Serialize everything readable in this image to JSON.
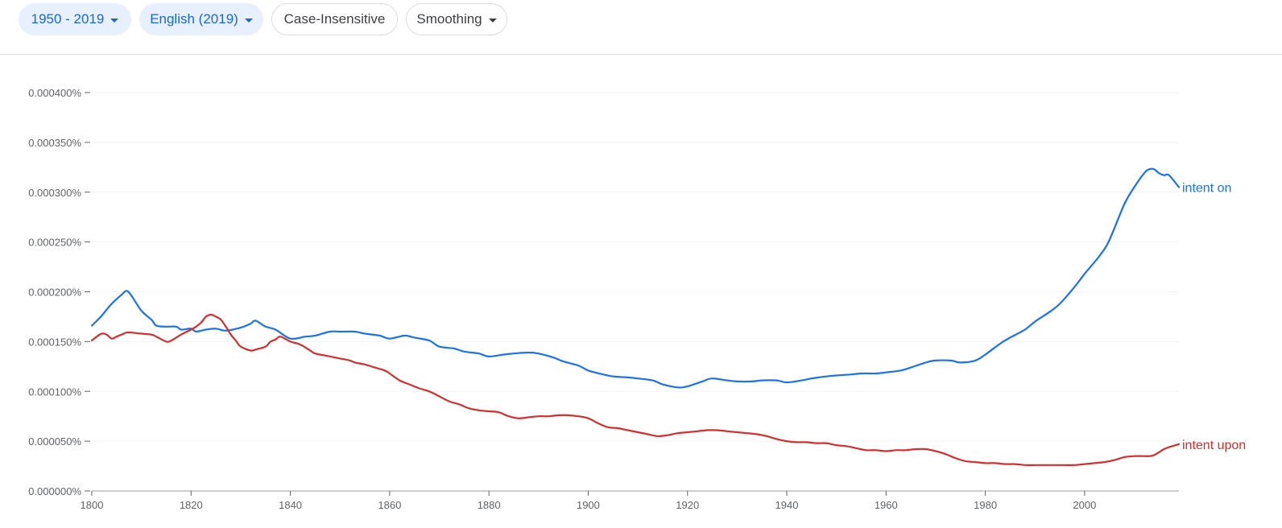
{
  "toolbar": {
    "year_range": "1950 - 2019",
    "corpus": "English (2019)",
    "case": "Case-Insensitive",
    "smoothing": "Smoothing"
  },
  "colors": {
    "intent_on": "#1a73e8",
    "intent_upon": "#d32f2f",
    "chip_active_bg": "#e8f0fe",
    "chip_active_text": "#1967d2"
  },
  "chart_data": {
    "type": "line",
    "title": "",
    "xlabel": "",
    "ylabel": "",
    "xlim": [
      1800,
      2019
    ],
    "ylim": [
      0,
      0.0004
    ],
    "grid": true,
    "legend": "end-of-line labels",
    "x_ticks": [
      "1800",
      "1820",
      "1840",
      "1860",
      "1880",
      "1900",
      "1920",
      "1940",
      "1960",
      "1980",
      "2000"
    ],
    "y_ticks": [
      "0.000000%",
      "0.000050%",
      "0.000100%",
      "0.000150%",
      "0.000200%",
      "0.000250%",
      "0.000300%",
      "0.000350%",
      "0.000400%"
    ],
    "series": [
      {
        "name": "intent on",
        "x": [
          1800,
          1802,
          1804,
          1806,
          1807,
          1808,
          1810,
          1812,
          1813,
          1815,
          1817,
          1818,
          1820,
          1821,
          1823,
          1825,
          1827,
          1830,
          1832,
          1833,
          1835,
          1837,
          1840,
          1843,
          1845,
          1848,
          1850,
          1853,
          1855,
          1858,
          1860,
          1863,
          1865,
          1868,
          1870,
          1873,
          1875,
          1878,
          1880,
          1883,
          1885,
          1888,
          1890,
          1893,
          1895,
          1898,
          1900,
          1903,
          1905,
          1908,
          1910,
          1913,
          1915,
          1918,
          1920,
          1923,
          1925,
          1928,
          1930,
          1933,
          1935,
          1938,
          1940,
          1943,
          1945,
          1948,
          1950,
          1953,
          1955,
          1958,
          1960,
          1963,
          1965,
          1968,
          1970,
          1973,
          1975,
          1978,
          1980,
          1983,
          1985,
          1988,
          1990,
          1993,
          1995,
          1998,
          2000,
          2003,
          2005,
          2008,
          2010,
          2012,
          2013,
          2014,
          2015,
          2016,
          2017,
          2019
        ],
        "values": [
          0.000166,
          0.000176,
          0.000188,
          0.000197,
          0.000201,
          0.000196,
          0.000181,
          0.000172,
          0.000166,
          0.000165,
          0.000165,
          0.000162,
          0.000163,
          0.00016,
          0.000162,
          0.000163,
          0.000161,
          0.000164,
          0.000168,
          0.000171,
          0.000165,
          0.000162,
          0.000153,
          0.000155,
          0.000156,
          0.00016,
          0.00016,
          0.00016,
          0.000158,
          0.000156,
          0.000153,
          0.000156,
          0.000154,
          0.000151,
          0.000145,
          0.000143,
          0.00014,
          0.000138,
          0.000135,
          0.000137,
          0.000138,
          0.000139,
          0.000138,
          0.000134,
          0.00013,
          0.000126,
          0.000121,
          0.000117,
          0.000115,
          0.000114,
          0.000113,
          0.000111,
          0.000107,
          0.000104,
          0.000105,
          0.00011,
          0.000113,
          0.000111,
          0.00011,
          0.00011,
          0.000111,
          0.000111,
          0.000109,
          0.000111,
          0.000113,
          0.000115,
          0.000116,
          0.000117,
          0.000118,
          0.000118,
          0.000119,
          0.000121,
          0.000124,
          0.000129,
          0.000131,
          0.000131,
          0.000129,
          0.000131,
          0.000137,
          0.000148,
          0.000154,
          0.000162,
          0.00017,
          0.00018,
          0.000188,
          0.000205,
          0.000218,
          0.000236,
          0.000252,
          0.000288,
          0.000305,
          0.000319,
          0.000323,
          0.000323,
          0.000319,
          0.000317,
          0.000317,
          0.000305
        ]
      },
      {
        "name": "intent upon",
        "x": [
          1800,
          1801,
          1802,
          1803,
          1804,
          1805,
          1806,
          1807,
          1808,
          1810,
          1812,
          1813,
          1815,
          1816,
          1818,
          1820,
          1821,
          1822,
          1823,
          1824,
          1825,
          1826,
          1827,
          1828,
          1829,
          1830,
          1832,
          1833,
          1835,
          1836,
          1837,
          1838,
          1840,
          1842,
          1844,
          1845,
          1847,
          1849,
          1850,
          1852,
          1853,
          1855,
          1857,
          1859,
          1860,
          1862,
          1864,
          1866,
          1868,
          1870,
          1872,
          1874,
          1876,
          1878,
          1880,
          1882,
          1884,
          1886,
          1888,
          1890,
          1892,
          1894,
          1896,
          1898,
          1900,
          1902,
          1904,
          1906,
          1908,
          1910,
          1912,
          1914,
          1916,
          1918,
          1920,
          1922,
          1924,
          1926,
          1928,
          1930,
          1932,
          1934,
          1936,
          1938,
          1940,
          1942,
          1944,
          1946,
          1948,
          1950,
          1952,
          1954,
          1956,
          1958,
          1960,
          1962,
          1964,
          1966,
          1968,
          1970,
          1972,
          1974,
          1976,
          1978,
          1980,
          1982,
          1984,
          1986,
          1988,
          1990,
          1992,
          1994,
          1996,
          1998,
          2000,
          2002,
          2004,
          2006,
          2008,
          2010,
          2012,
          2013,
          2014,
          2016,
          2017,
          2019
        ],
        "values": [
          0.000151,
          0.000155,
          0.000158,
          0.000157,
          0.000153,
          0.000155,
          0.000157,
          0.000159,
          0.000159,
          0.000158,
          0.000157,
          0.000155,
          0.00015,
          0.000151,
          0.000157,
          0.000162,
          0.000165,
          0.000169,
          0.000175,
          0.000177,
          0.000175,
          0.000172,
          0.000165,
          0.000157,
          0.000151,
          0.000145,
          0.000141,
          0.000142,
          0.000145,
          0.00015,
          0.000152,
          0.000155,
          0.00015,
          0.000147,
          0.000141,
          0.000138,
          0.000136,
          0.000134,
          0.000133,
          0.000131,
          0.000129,
          0.000127,
          0.000124,
          0.000121,
          0.000118,
          0.000111,
          0.000107,
          0.000103,
          0.0001,
          9.5e-05,
          9e-05,
          8.7e-05,
          8.3e-05,
          8.1e-05,
          8e-05,
          7.9e-05,
          7.5e-05,
          7.3e-05,
          7.4e-05,
          7.5e-05,
          7.5e-05,
          7.6e-05,
          7.6e-05,
          7.5e-05,
          7.3e-05,
          6.8e-05,
          6.4e-05,
          6.3e-05,
          6.1e-05,
          5.9e-05,
          5.7e-05,
          5.5e-05,
          5.6e-05,
          5.8e-05,
          5.9e-05,
          6e-05,
          6.1e-05,
          6.1e-05,
          6e-05,
          5.9e-05,
          5.8e-05,
          5.7e-05,
          5.5e-05,
          5.2e-05,
          5e-05,
          4.9e-05,
          4.9e-05,
          4.8e-05,
          4.8e-05,
          4.6e-05,
          4.5e-05,
          4.3e-05,
          4.1e-05,
          4.1e-05,
          4e-05,
          4.1e-05,
          4.1e-05,
          4.2e-05,
          4.2e-05,
          4e-05,
          3.7e-05,
          3.3e-05,
          3e-05,
          2.9e-05,
          2.8e-05,
          2.8e-05,
          2.7e-05,
          2.7e-05,
          2.6e-05,
          2.6e-05,
          2.6e-05,
          2.6e-05,
          2.6e-05,
          2.6e-05,
          2.7e-05,
          2.8e-05,
          2.9e-05,
          3.1e-05,
          3.4e-05,
          3.5e-05,
          3.5e-05,
          3.5e-05,
          3.6e-05,
          4.2e-05,
          4.4e-05,
          4.7e-05
        ]
      }
    ]
  }
}
